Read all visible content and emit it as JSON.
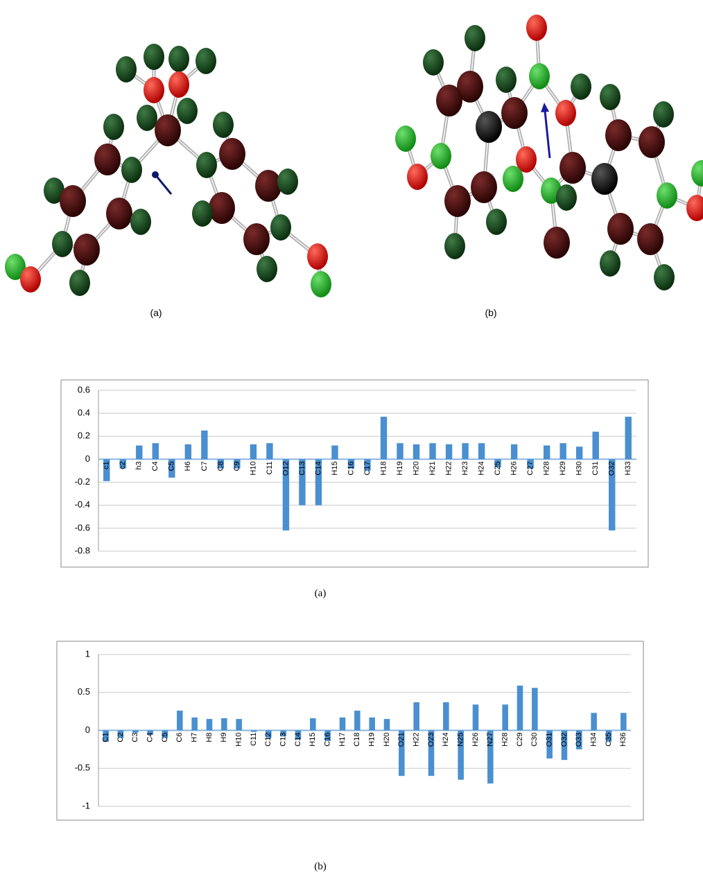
{
  "molecule_captions": [
    "(a)",
    "(b)"
  ],
  "chart_data": [
    {
      "type": "bar",
      "caption": "(a)",
      "categories": [
        "c1",
        "c2",
        "h3",
        "C4",
        "C5",
        "H6",
        "C7",
        "C8",
        "C9",
        "H10",
        "C11",
        "O12",
        "C13",
        "C14",
        "H15",
        "C16",
        "C17",
        "H18",
        "H19",
        "H20",
        "H21",
        "H22",
        "H23",
        "H24",
        "C25",
        "H26",
        "C27",
        "H28",
        "H29",
        "H30",
        "C31",
        "O32",
        "H33"
      ],
      "values": [
        -0.19,
        -0.08,
        0.12,
        0.14,
        -0.16,
        0.13,
        0.25,
        -0.08,
        -0.08,
        0.13,
        0.14,
        -0.62,
        -0.4,
        -0.4,
        0.12,
        -0.08,
        -0.1,
        0.37,
        0.14,
        0.13,
        0.14,
        0.13,
        0.14,
        0.14,
        -0.07,
        0.13,
        -0.08,
        0.12,
        0.14,
        0.11,
        0.24,
        -0.62,
        0.37
      ],
      "color": "#4a8fd0",
      "ylim": [
        -0.8,
        0.6
      ],
      "yticks": [
        -0.8,
        -0.6,
        -0.4,
        -0.2,
        0,
        0.2,
        0.4,
        0.6
      ],
      "grid": true
    },
    {
      "type": "bar",
      "caption": "(b)",
      "categories": [
        "C1",
        "C2",
        "C3",
        "C4",
        "C5",
        "C6",
        "H7",
        "H8",
        "H9",
        "H10",
        "C11",
        "C12",
        "C13",
        "C14",
        "H15",
        "C16",
        "H17",
        "C18",
        "H19",
        "H20",
        "O21",
        "H22",
        "O23",
        "H24",
        "N25",
        "H26",
        "N27",
        "H28",
        "C29",
        "C30",
        "O31",
        "O32",
        "O33",
        "H34",
        "C35",
        "H36"
      ],
      "values": [
        -0.15,
        -0.1,
        -0.03,
        -0.06,
        -0.1,
        0.26,
        0.17,
        0.15,
        0.16,
        0.15,
        -0.02,
        -0.1,
        -0.08,
        -0.12,
        0.16,
        -0.14,
        0.17,
        0.26,
        0.17,
        0.15,
        -0.6,
        0.37,
        -0.6,
        0.37,
        -0.65,
        0.34,
        -0.7,
        0.34,
        0.59,
        0.56,
        -0.37,
        -0.39,
        -0.25,
        0.23,
        -0.15,
        0.23
      ],
      "color": "#4a8fd0",
      "ylim": [
        -1,
        1
      ],
      "yticks": [
        -1,
        -0.5,
        0,
        0.5,
        1
      ],
      "grid": true
    }
  ]
}
